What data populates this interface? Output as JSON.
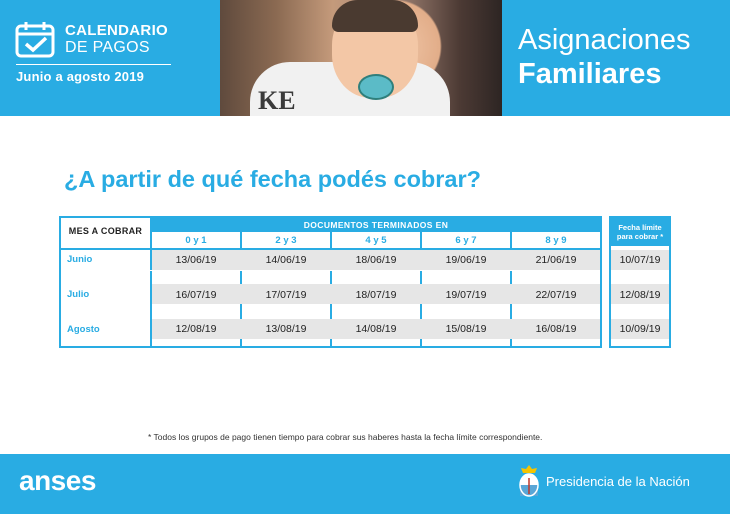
{
  "header": {
    "calendar_title_1": "CALENDARIO",
    "calendar_title_2": "DE PAGOS",
    "period": "Junio a agosto 2019",
    "photo_text": "KE",
    "title_line1": "Asignaciones",
    "title_line2": "Familiares"
  },
  "question": "¿A partir de qué fecha podés cobrar?",
  "table": {
    "month_header": "MES A COBRAR",
    "docs_header": "DOCUMENTOS TERMINADOS EN",
    "groups": [
      "0 y 1",
      "2 y 3",
      "4 y 5",
      "6 y 7",
      "8 y 9"
    ],
    "rows": [
      {
        "month": "Junio",
        "dates": [
          "13/06/19",
          "14/06/19",
          "18/06/19",
          "19/06/19",
          "21/06/19"
        ],
        "limit": "10/07/19"
      },
      {
        "month": "Julio",
        "dates": [
          "16/07/19",
          "17/07/19",
          "18/07/19",
          "19/07/19",
          "22/07/19"
        ],
        "limit": "12/08/19"
      },
      {
        "month": "Agosto",
        "dates": [
          "12/08/19",
          "13/08/19",
          "14/08/19",
          "15/08/19",
          "16/08/19"
        ],
        "limit": "10/09/19"
      }
    ],
    "limit_header_1": "Fecha límite",
    "limit_header_2": "para cobrar *"
  },
  "footnote": "* Todos los grupos de pago tienen tiempo para cobrar sus haberes hasta la fecha límite correspondiente.",
  "footer": {
    "brand": "anses",
    "presidency": "Presidencia de la Nación"
  },
  "colors": {
    "accent": "#29ace3",
    "row_bg": "#e6e6e6"
  }
}
